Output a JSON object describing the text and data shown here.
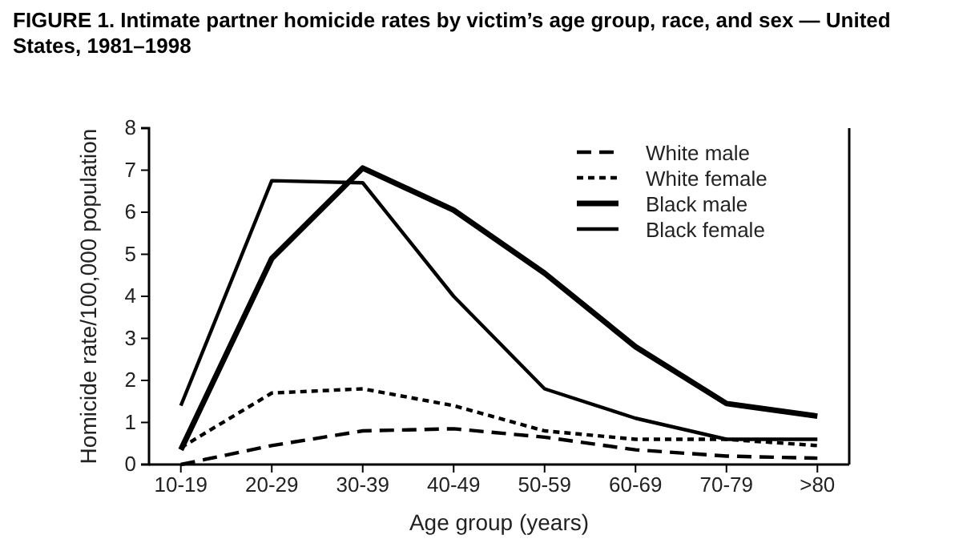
{
  "chart_data": {
    "type": "line",
    "title": "FIGURE 1. Intimate partner homicide rates by victim’s age group, race, and sex — United States, 1981–1998",
    "xlabel": "Age group (years)",
    "ylabel": "Homicide rate/100,000 population",
    "categories": [
      "10-19",
      "20-29",
      "30-39",
      "40-49",
      "50-59",
      "60-69",
      "70-79",
      ">80"
    ],
    "series": [
      {
        "name": "White male",
        "color": "#000000",
        "line_style": "dashed",
        "values": [
          0.0,
          0.45,
          0.8,
          0.85,
          0.65,
          0.35,
          0.2,
          0.15
        ]
      },
      {
        "name": "White female",
        "color": "#000000",
        "line_style": "dotted",
        "values": [
          0.4,
          1.7,
          1.8,
          1.4,
          0.8,
          0.6,
          0.6,
          0.45
        ]
      },
      {
        "name": "Black male",
        "color": "#000000",
        "line_style": "solid",
        "values": [
          0.35,
          4.9,
          7.05,
          6.05,
          4.55,
          2.8,
          1.45,
          1.15
        ]
      },
      {
        "name": "Black female",
        "color": "#000000",
        "line_style": "solid",
        "values": [
          1.4,
          6.75,
          6.7,
          4.0,
          1.8,
          1.1,
          0.6,
          0.6
        ]
      }
    ],
    "ylim": [
      0,
      8
    ],
    "yticks": [
      0,
      1,
      2,
      3,
      4,
      5,
      6,
      7,
      8
    ],
    "legend": "top right",
    "grid": false,
    "marker": "none"
  }
}
